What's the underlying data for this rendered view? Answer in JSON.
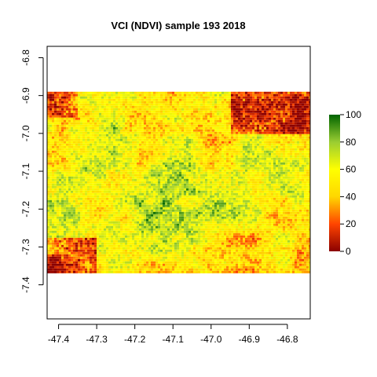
{
  "chart_data": {
    "type": "heatmap",
    "title": "VCI (NDVI) sample 193 2018",
    "xlabel": "",
    "ylabel": "",
    "x_ticks": [
      "-47.4",
      "-47.3",
      "-47.2",
      "-47.1",
      "-47.0",
      "-46.9",
      "-46.8"
    ],
    "x_tick_values": [
      -47.4,
      -47.3,
      -47.2,
      -47.1,
      -47.0,
      -46.9,
      -46.8
    ],
    "y_ticks": [
      "-6.8",
      "-6.9",
      "-7.0",
      "-7.1",
      "-7.2",
      "-7.3",
      "-7.4"
    ],
    "y_tick_values": [
      -6.8,
      -6.9,
      -7.0,
      -7.1,
      -7.2,
      -7.3,
      -7.4
    ],
    "xlim": [
      -47.43,
      -46.74
    ],
    "ylim": [
      -7.49,
      -6.77
    ],
    "raster_extent": {
      "x": [
        -47.43,
        -46.74
      ],
      "y": [
        -7.37,
        -6.89
      ]
    },
    "legend": {
      "placement": "right",
      "min": 0,
      "max": 100,
      "ticks": [
        "0",
        "20",
        "40",
        "60",
        "80",
        "100"
      ],
      "tick_values": [
        0,
        20,
        40,
        60,
        80,
        100
      ],
      "colors": [
        "#8b0000",
        "#ff4500",
        "#ffd700",
        "#ffff00",
        "#9acd32",
        "#006400"
      ]
    },
    "grid": false,
    "dense_regions": {
      "low_top_right": {
        "x": [
          -46.95,
          -46.74
        ],
        "y": [
          -7.0,
          -6.89
        ]
      },
      "low_bottom_left": {
        "x": [
          -47.43,
          -47.3
        ],
        "y": [
          -7.37,
          -7.27
        ]
      },
      "low_top_left": {
        "x": [
          -47.43,
          -47.35
        ],
        "y": [
          -6.96,
          -6.89
        ]
      }
    }
  }
}
